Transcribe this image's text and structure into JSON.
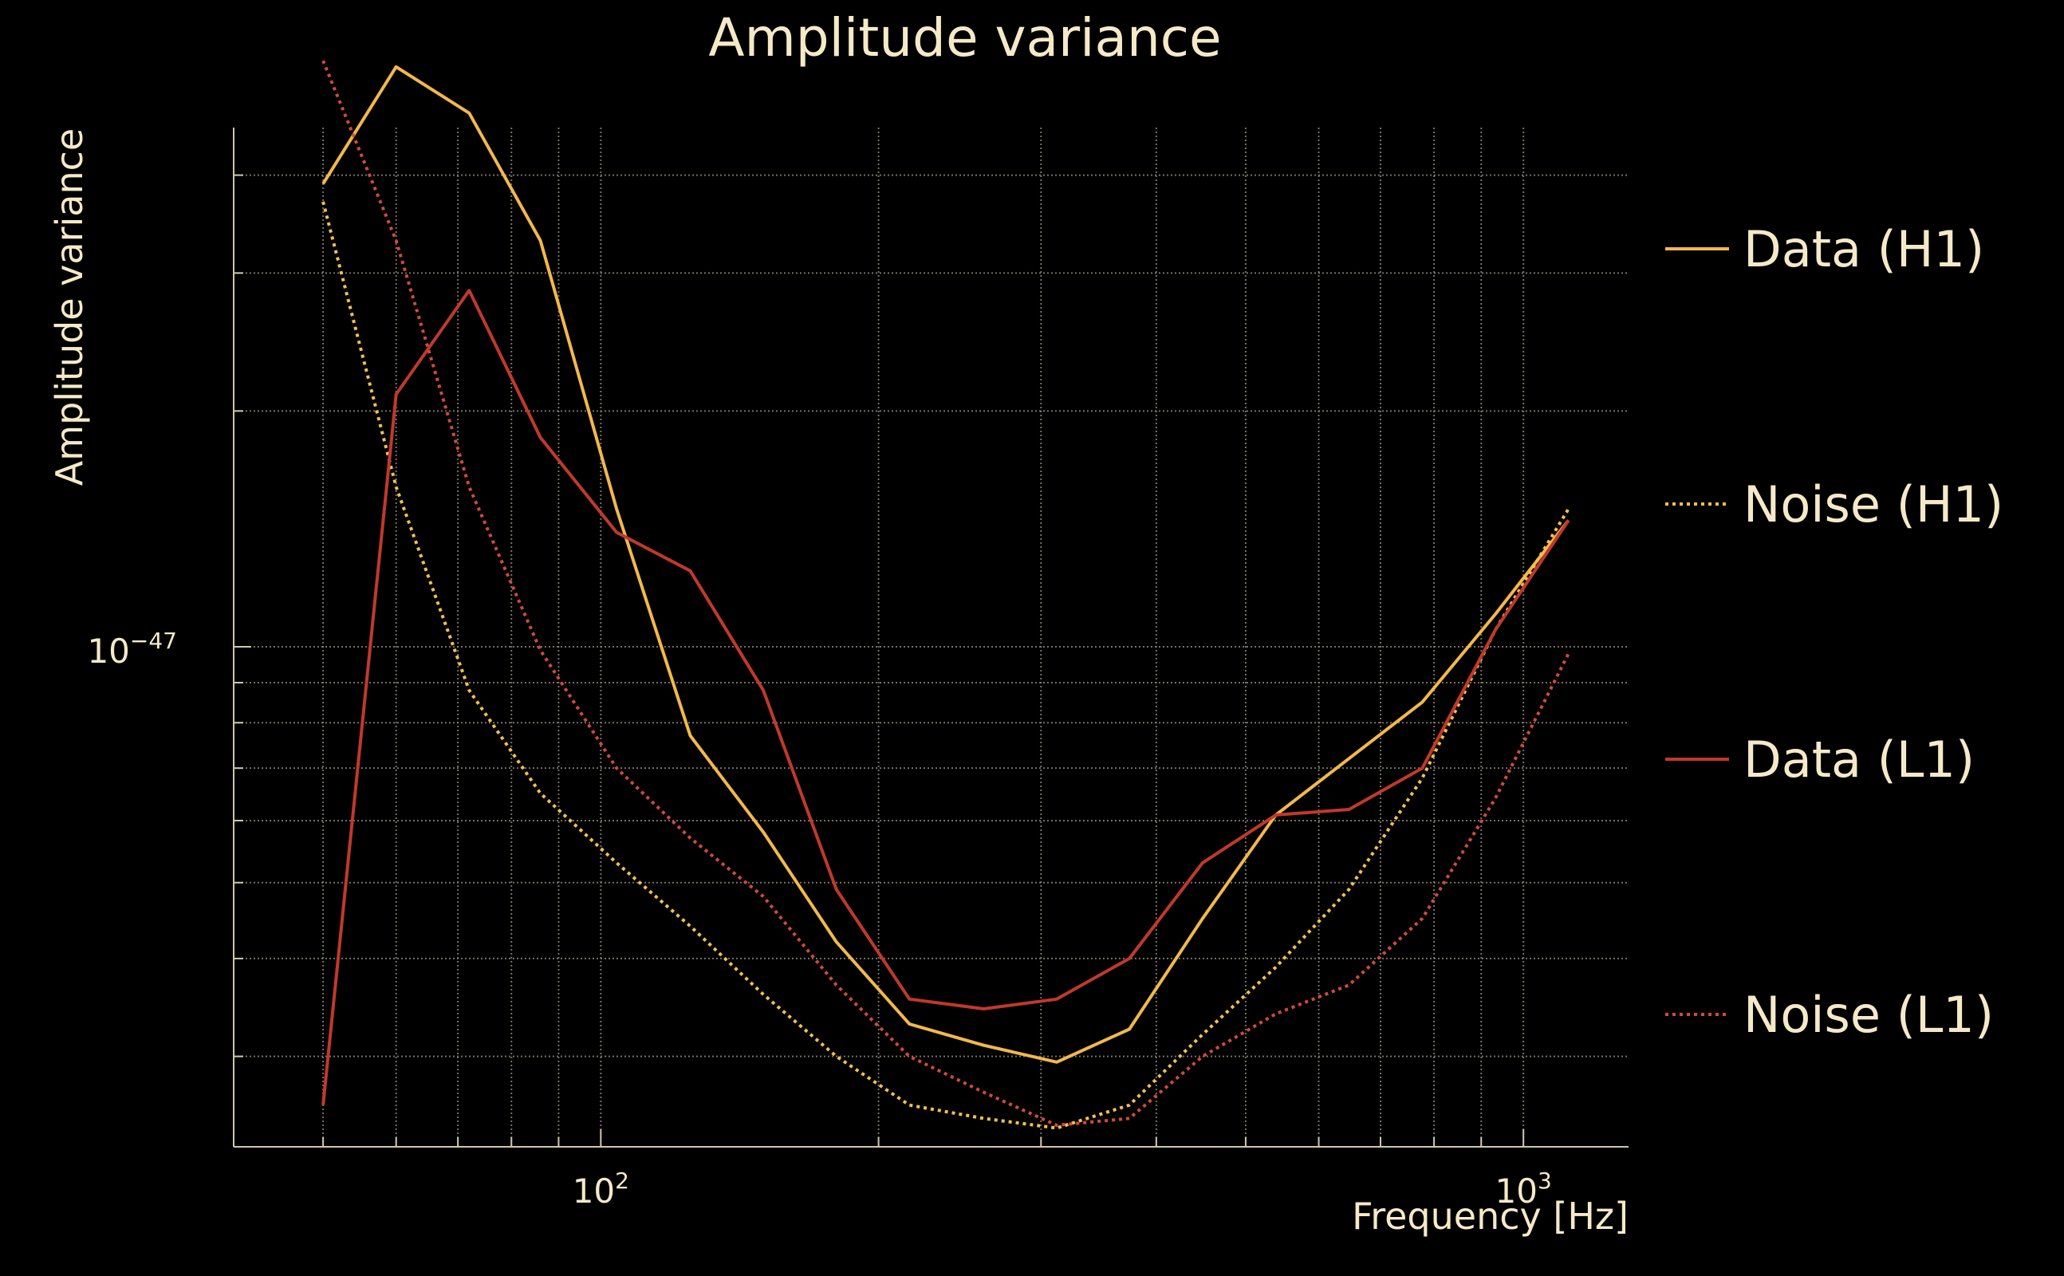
{
  "chart_data": {
    "type": "line",
    "title": "Amplitude variance",
    "xlabel": "Frequency [Hz]",
    "ylabel": "Amplitude variance",
    "xscale": "log",
    "yscale": "log",
    "xlim": [
      40,
      1300
    ],
    "ylim": [
      2.3e-48,
      4.6e-47
    ],
    "x_ticks": [
      {
        "value": 100,
        "base": "10",
        "exp": "2"
      },
      {
        "value": 1000,
        "base": "10",
        "exp": "3"
      }
    ],
    "y_ticks": [
      {
        "value": 1e-47,
        "base": "10",
        "exp": "−47"
      }
    ],
    "grid": true,
    "legend_position": "right",
    "x": [
      50,
      60,
      72,
      86,
      104,
      125,
      150,
      180,
      216,
      260,
      312,
      374,
      449,
      539,
      647,
      777,
      932,
      1119
    ],
    "series": [
      {
        "name": "Data (H1)",
        "color": "#f2b84b",
        "style": "solid",
        "values": [
          3.9e-47,
          5.5e-47,
          4.8e-47,
          3.3e-47,
          1.5e-47,
          7.7e-48,
          5.8e-48,
          4.2e-48,
          3.3e-48,
          3.1e-48,
          2.95e-48,
          3.25e-48,
          4.5e-48,
          6.1e-48,
          7.2e-48,
          8.5e-48,
          1.1e-47,
          1.45e-47
        ]
      },
      {
        "name": "Noise (H1)",
        "color": "#f2c14e",
        "style": "dotted",
        "values": [
          3.7e-47,
          1.6e-47,
          8.8e-48,
          6.5e-48,
          5.3e-48,
          4.4e-48,
          3.6e-48,
          3e-48,
          2.6e-48,
          2.5e-48,
          2.43e-48,
          2.6e-48,
          3.2e-48,
          3.9e-48,
          4.9e-48,
          6.8e-48,
          1.05e-47,
          1.5e-47
        ]
      },
      {
        "name": "Data (L1)",
        "color": "#c0392b",
        "style": "solid",
        "values": [
          2.6e-48,
          2.1e-47,
          2.85e-47,
          1.85e-47,
          1.4e-47,
          1.25e-47,
          8.8e-48,
          4.9e-48,
          3.55e-48,
          3.45e-48,
          3.55e-48,
          4e-48,
          5.3e-48,
          6.1e-48,
          6.2e-48,
          7e-48,
          1.05e-47,
          1.45e-47
        ]
      },
      {
        "name": "Noise (L1)",
        "color": "#d14a3a",
        "style": "dotted",
        "values": [
          5.6e-47,
          3.3e-47,
          1.6e-47,
          9.9e-48,
          7e-48,
          5.7e-48,
          4.8e-48,
          3.7e-48,
          3e-48,
          2.7e-48,
          2.45e-48,
          2.5e-48,
          3e-48,
          3.4e-48,
          3.7e-48,
          4.5e-48,
          6.4e-48,
          9.8e-48
        ]
      }
    ]
  }
}
